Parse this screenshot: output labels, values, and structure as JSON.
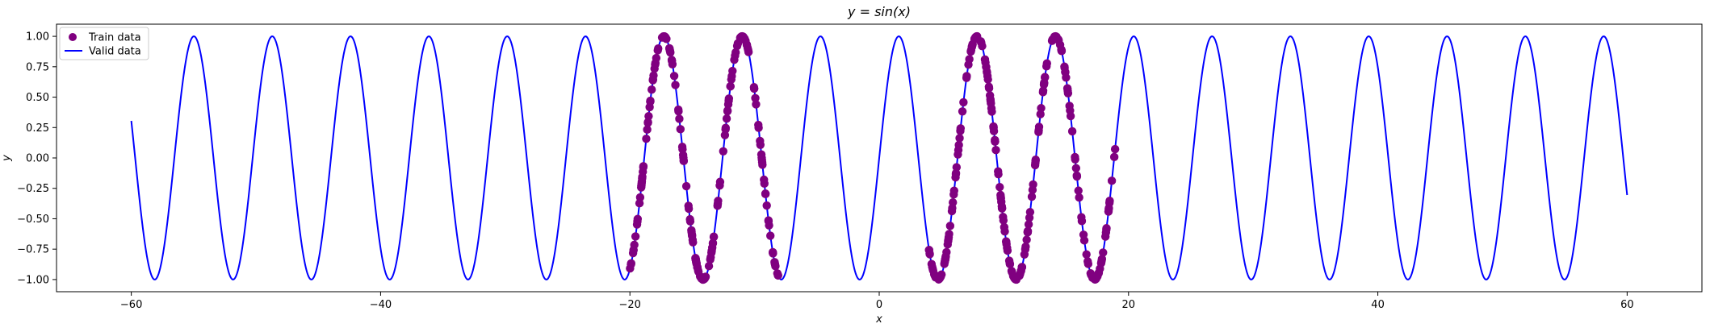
{
  "chart_data": {
    "type": "scatter",
    "title": "y = sin(x)",
    "xlabel": "x",
    "ylabel": "y",
    "xlim": [
      -66,
      66
    ],
    "ylim": [
      -1.1,
      1.1
    ],
    "xticks": [
      -60,
      -40,
      -20,
      0,
      20,
      40,
      60
    ],
    "xtick_labels": [
      "−60",
      "−40",
      "−20",
      "0",
      "20",
      "40",
      "60"
    ],
    "yticks": [
      -1.0,
      -0.75,
      -0.5,
      -0.25,
      0.0,
      0.25,
      0.5,
      0.75,
      1.0
    ],
    "ytick_labels": [
      "−1.00",
      "−0.75",
      "−0.50",
      "−0.25",
      "0.00",
      "0.25",
      "0.50",
      "0.75",
      "1.00"
    ],
    "grid": false,
    "legend_position": "top-left",
    "series": [
      {
        "name": "Train data",
        "kind": "scatter",
        "color": "#800080",
        "function": "sin",
        "x_ranges": [
          [
            -20,
            -8
          ],
          [
            4,
            19
          ]
        ]
      },
      {
        "name": "Valid data",
        "kind": "line",
        "color": "#0000ff",
        "function": "sin",
        "x_range": [
          -60,
          60
        ]
      }
    ]
  }
}
